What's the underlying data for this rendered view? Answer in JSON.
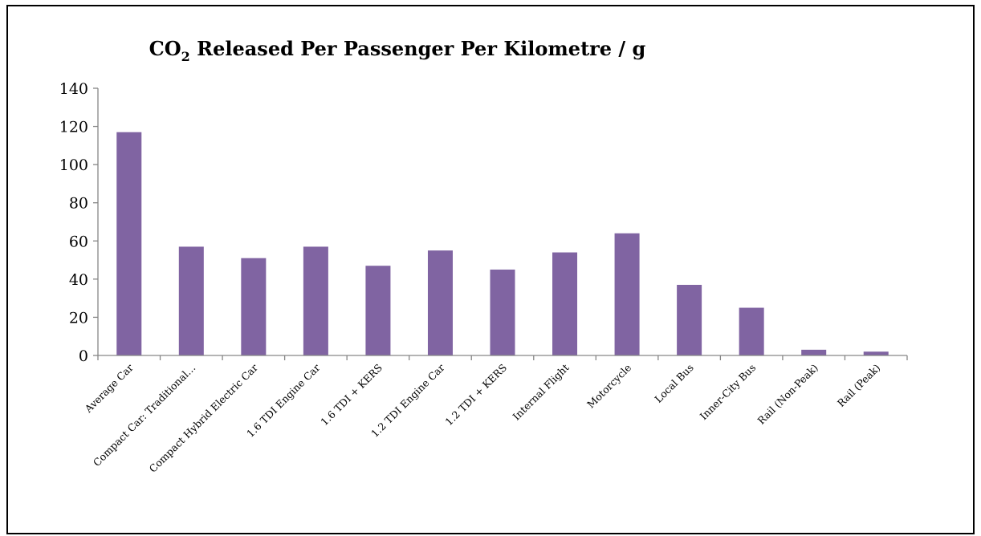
{
  "chart_data": {
    "type": "bar",
    "title": {
      "main_prefix": "CO",
      "subscript": "2",
      "main_suffix": " Released Per Passenger Per Kilometre / g"
    },
    "categories": [
      "Average Car",
      "Compact Car: Traditional…",
      "Compact Hybrid Electric Car",
      "1.6 TDI Engine Car",
      "1.6 TDI + KERS",
      "1.2 TDI Engine Car",
      "1.2 TDI + KERS",
      "Internal Flight",
      "Motorcycle",
      "Local Bus",
      "Inner-City Bus",
      "Rail (Non-Peak)",
      "Rail (Peak)"
    ],
    "values": [
      117,
      57,
      51,
      57,
      47,
      55,
      45,
      54,
      64,
      37,
      25,
      3,
      2
    ],
    "ylim": [
      0,
      140
    ],
    "yticks": [
      "0",
      "20",
      "40",
      "60",
      "80",
      "100",
      "120",
      "140"
    ],
    "xlabel": "",
    "ylabel": "",
    "grid": false,
    "legend": "none",
    "bar_color": "#8064a2",
    "axis_color": "#868686"
  }
}
